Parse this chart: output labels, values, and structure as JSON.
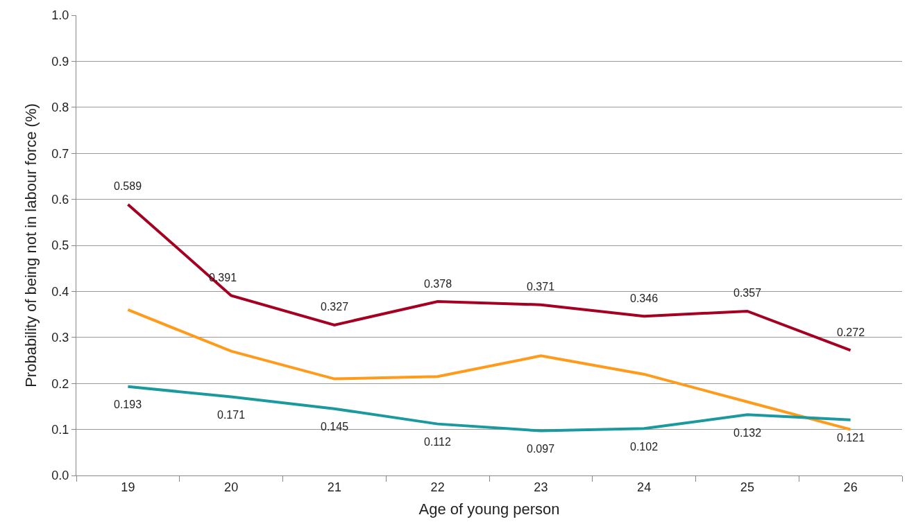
{
  "chart_data": {
    "type": "line",
    "xlabel": "Age of young person",
    "ylabel": "Probability of being not in labour force (%)",
    "categories": [
      "19",
      "20",
      "21",
      "22",
      "23",
      "24",
      "25",
      "26"
    ],
    "series": [
      {
        "color": "#a50021",
        "values": [
          0.589,
          0.391,
          0.327,
          0.378,
          0.371,
          0.346,
          0.357,
          0.272
        ],
        "value_labels": [
          "0.589",
          "0.391",
          "0.327",
          "0.378",
          "0.371",
          "0.346",
          "0.357",
          "0.272"
        ]
      },
      {
        "color": "#ff9a1a",
        "values": [
          0.36,
          0.27,
          0.21,
          0.215,
          0.26,
          0.22,
          0.16,
          0.1
        ]
      },
      {
        "color": "#1a9a9e",
        "values": [
          0.193,
          0.171,
          0.145,
          0.112,
          0.097,
          0.102,
          0.132,
          0.121
        ],
        "value_labels": [
          "0.193",
          "0.171",
          "0.145",
          "0.112",
          "0.097",
          "0.102",
          "0.132",
          "0.121"
        ]
      }
    ],
    "ylim": [
      0,
      1
    ],
    "yticks": [
      {
        "value": 0,
        "label": "0.0"
      },
      {
        "value": 0.1,
        "label": "0.1"
      },
      {
        "value": 0.2,
        "label": "0.2"
      },
      {
        "value": 0.3,
        "label": "0.3"
      },
      {
        "value": 0.4,
        "label": "0.4"
      },
      {
        "value": 0.5,
        "label": "0.5"
      },
      {
        "value": 0.6,
        "label": "0.6"
      },
      {
        "value": 0.7,
        "label": "0.7"
      },
      {
        "value": 0.8,
        "label": "0.8"
      },
      {
        "value": 0.9,
        "label": "0.9"
      },
      {
        "value": 1,
        "label": "1.0"
      }
    ],
    "grid": "y",
    "marker": "none",
    "line_style": "solid"
  }
}
